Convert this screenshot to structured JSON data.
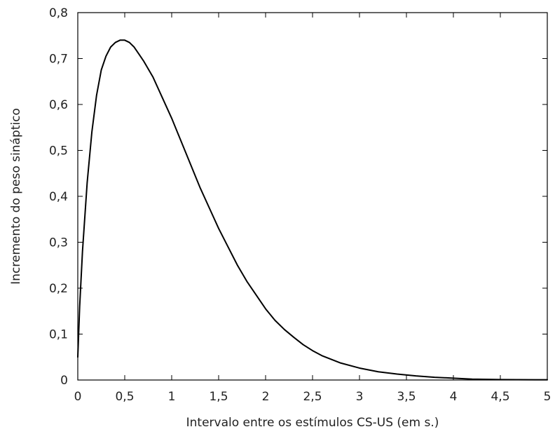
{
  "chart_data": {
    "type": "line",
    "title": "",
    "xlabel": "Intervalo entre os estímulos CS-US (em s.)",
    "ylabel": "Incremento do peso sináptico",
    "xlim": [
      0,
      5
    ],
    "ylim": [
      0,
      0.8
    ],
    "x_ticks": [
      0,
      0.5,
      1,
      1.5,
      2,
      2.5,
      3,
      3.5,
      4,
      4.5,
      5
    ],
    "x_tick_labels": [
      "0",
      "0,5",
      "1",
      "1,5",
      "2",
      "2,5",
      "3",
      "3,5",
      "4",
      "4,5",
      "5"
    ],
    "y_ticks": [
      0,
      0.1,
      0.2,
      0.3,
      0.4,
      0.5,
      0.6,
      0.7,
      0.8
    ],
    "y_tick_labels": [
      "0",
      "0,1",
      "0,2",
      "0,3",
      "0,4",
      "0,5",
      "0,6",
      "0,7",
      "0,8"
    ],
    "grid": false,
    "legend": "none",
    "series": [
      {
        "color": "#000000",
        "x": [
          0,
          0.02,
          0.05,
          0.1,
          0.15,
          0.2,
          0.25,
          0.3,
          0.35,
          0.4,
          0.45,
          0.5,
          0.55,
          0.6,
          0.65,
          0.7,
          0.8,
          0.9,
          1.0,
          1.1,
          1.2,
          1.3,
          1.4,
          1.5,
          1.6,
          1.7,
          1.8,
          1.9,
          2.0,
          2.1,
          2.2,
          2.3,
          2.4,
          2.5,
          2.6,
          2.8,
          3.0,
          3.2,
          3.4,
          3.6,
          3.8,
          4.0,
          4.2,
          4.5,
          5.0
        ],
        "y": [
          0.05,
          0.16,
          0.28,
          0.43,
          0.54,
          0.62,
          0.675,
          0.705,
          0.725,
          0.735,
          0.74,
          0.74,
          0.735,
          0.725,
          0.71,
          0.695,
          0.66,
          0.615,
          0.57,
          0.52,
          0.47,
          0.42,
          0.375,
          0.33,
          0.29,
          0.25,
          0.215,
          0.185,
          0.155,
          0.13,
          0.11,
          0.093,
          0.077,
          0.064,
          0.053,
          0.037,
          0.026,
          0.018,
          0.013,
          0.009,
          0.006,
          0.004,
          0.002,
          0.001,
          0.0005
        ]
      }
    ]
  }
}
